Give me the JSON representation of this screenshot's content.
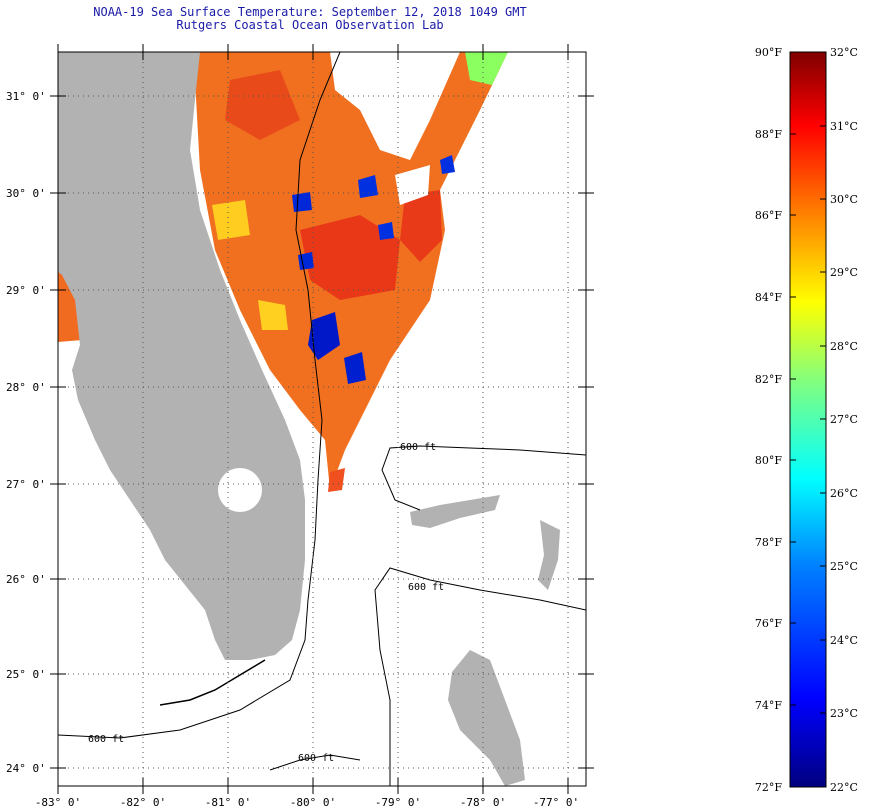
{
  "header": {
    "title": "NOAA-19 Sea Surface Temperature:  September 12, 2018 1049 GMT",
    "subtitle": "Rutgers Coastal Ocean Observation Lab"
  },
  "map": {
    "lat_labels": [
      "31° 0'",
      "30° 0'",
      "29° 0'",
      "28° 0'",
      "27° 0'",
      "26° 0'",
      "25° 0'",
      "24° 0'"
    ],
    "lon_labels": [
      "-83° 0'",
      "-82° 0'",
      "-81° 0'",
      "-80° 0'",
      "-79° 0'",
      "-78° 0'",
      "-77° 0'"
    ],
    "contour_label": "600 ft",
    "colors": {
      "land": "#b2b2b2",
      "ocean_nodata": "#ffffff",
      "grid": "#555555"
    }
  },
  "colorbar": {
    "fahrenheit_labels": [
      "90°F",
      "88°F",
      "86°F",
      "84°F",
      "82°F",
      "80°F",
      "78°F",
      "76°F",
      "74°F",
      "72°F"
    ],
    "celsius_labels": [
      "32°C",
      "31°C",
      "30°C",
      "29°C",
      "28°C",
      "27°C",
      "26°C",
      "25°C",
      "24°C",
      "23°C",
      "22°C"
    ],
    "range_f": [
      72,
      90
    ],
    "range_c": [
      22,
      32
    ]
  }
}
